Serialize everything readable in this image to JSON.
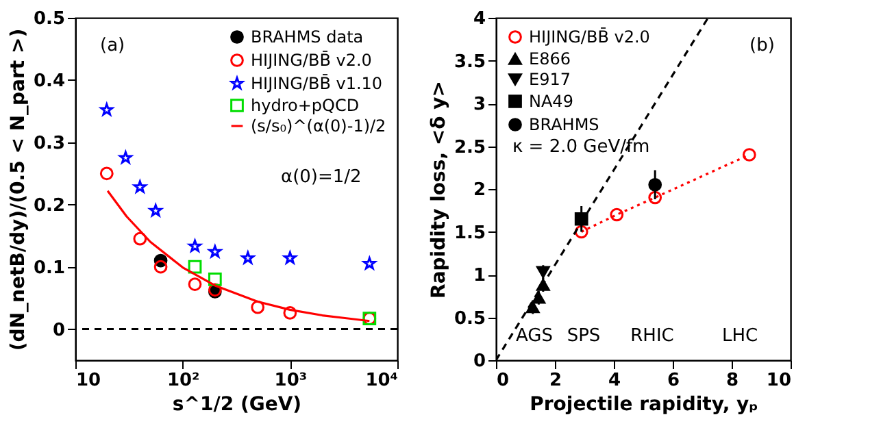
{
  "chart_data": [
    {
      "type": "scatter",
      "xlabel": "s^1/2 (GeV)",
      "ylabel": "(dN_netB/dy)/(0.5 < N_part >)",
      "log": "x",
      "xlim": [
        10,
        10000
      ],
      "ylim": [
        -0.05,
        0.5
      ],
      "xticks": [
        10,
        {
          "value": 100,
          "label": "10²"
        },
        {
          "value": 1000,
          "label": "10³"
        },
        {
          "value": 10000,
          "label": "10⁴"
        }
      ],
      "yticks": [
        0,
        0.1,
        0.2,
        0.3,
        0.4,
        0.5
      ],
      "grid": false,
      "legend": "top right",
      "annotations": [
        "(a)",
        "α(0)=1/2"
      ],
      "ref_lines": [
        {
          "axis": "y",
          "value": 0,
          "line_style": "dashed",
          "color": "#000000"
        }
      ],
      "series": [
        {
          "name": "BRAHMS data",
          "type": "scatter",
          "marker": "circle",
          "color": "#000000",
          "x": [
            62.4,
            200
          ],
          "values": [
            0.11,
            0.06
          ],
          "errors": [
            0.01,
            0.01
          ]
        },
        {
          "name": "HIJING/BB̄ v2.0",
          "type": "scatter",
          "marker": "circle",
          "color": "#ff0000",
          "x": [
            19.6,
            40,
            62.4,
            130,
            200,
            500,
            1000,
            5500
          ],
          "values": [
            0.25,
            0.145,
            0.1,
            0.072,
            0.063,
            0.035,
            0.026,
            0.017
          ]
        },
        {
          "name": "HIJING/BB̄ v1.10",
          "type": "scatter",
          "marker": "star",
          "color": "#0000ff",
          "x": [
            19.6,
            29.4,
            40,
            56,
            130,
            200,
            405,
            1000,
            5500
          ],
          "values": [
            0.352,
            0.275,
            0.228,
            0.19,
            0.133,
            0.124,
            0.114,
            0.114,
            0.105
          ]
        },
        {
          "name": "hydro+pQCD",
          "type": "scatter",
          "marker": "square",
          "color": "#00dd00",
          "x": [
            130,
            200,
            5500
          ],
          "values": [
            0.1,
            0.08,
            0.017
          ]
        },
        {
          "name": "(s/s₀)^(α(0)-1)/2",
          "type": "line",
          "marker": "none",
          "line_style": "solid",
          "color": "#ff0000",
          "x": [
            20,
            30,
            50,
            100,
            200,
            500,
            1000,
            2000,
            5500
          ],
          "values": [
            0.222,
            0.181,
            0.14,
            0.099,
            0.07,
            0.044,
            0.031,
            0.022,
            0.013
          ]
        }
      ]
    },
    {
      "type": "scatter",
      "xlabel": "Projectile rapidity, yₚ",
      "ylabel": "Rapidity loss, <δ y>",
      "xlim": [
        0,
        10
      ],
      "ylim": [
        0,
        4
      ],
      "xticks": [
        0,
        2,
        4,
        6,
        8,
        10
      ],
      "yticks": [
        0,
        0.5,
        1,
        1.5,
        2,
        2.5,
        3,
        3.5,
        4
      ],
      "grid": false,
      "legend": "top left",
      "annotations": [
        "(b)",
        "κ = 2.0 GeV/fm",
        "AGS",
        "SPS",
        "RHIC",
        "LHC"
      ],
      "series": [
        {
          "name": "HIJING/BB̄ v2.0",
          "type": "line",
          "marker": "circle",
          "line_style": "dotted",
          "color": "#ff0000",
          "x": [
            2.9,
            4.1,
            5.4,
            8.6
          ],
          "values": [
            1.5,
            1.7,
            1.9,
            2.4
          ]
        },
        {
          "name": "E866",
          "type": "scatter",
          "marker": "triangle",
          "color": "#000000",
          "x": [
            1.25,
            1.45,
            1.6
          ],
          "values": [
            0.62,
            0.73,
            0.88
          ],
          "errors": [
            0.08,
            0.08,
            0.08
          ]
        },
        {
          "name": "E917",
          "type": "scatter",
          "marker": "triangle-down",
          "color": "#000000",
          "x": [
            1.6
          ],
          "values": [
            1.03
          ],
          "errors": [
            0.08
          ]
        },
        {
          "name": "NA49",
          "type": "scatter",
          "marker": "square",
          "color": "#000000",
          "x": [
            2.9
          ],
          "values": [
            1.65
          ],
          "errors": [
            0.15
          ]
        },
        {
          "name": "BRAHMS",
          "type": "scatter",
          "marker": "circle",
          "color": "#000000",
          "x": [
            5.4
          ],
          "values": [
            2.05
          ],
          "errors": [
            0.17
          ]
        },
        {
          "type": "line",
          "marker": "none",
          "line_style": "dashed",
          "color": "#000000",
          "x": [
            0,
            7.2
          ],
          "values": [
            0,
            4
          ]
        }
      ]
    }
  ]
}
